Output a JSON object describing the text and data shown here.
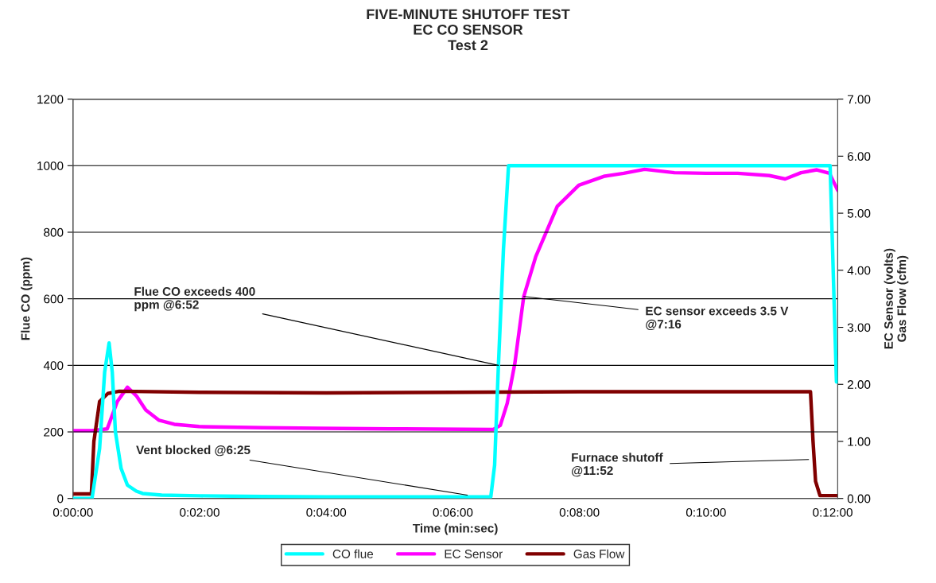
{
  "chart_data": {
    "type": "line",
    "title": "FIVE-MINUTE SHUTOFF TEST\nEC CO SENSOR\nTest 2",
    "xlabel": "Time (min:sec)",
    "ylabel": "Flue CO (ppm)",
    "y2label": "EC Sensor (volts)\nGas Flow (cfm)",
    "xlim": [
      0,
      12.08
    ],
    "xticks": [
      {
        "value": 0,
        "label": "0:00:00"
      },
      {
        "value": 2,
        "label": "0:02:00"
      },
      {
        "value": 4,
        "label": "0:04:00"
      },
      {
        "value": 6,
        "label": "0:06:00"
      },
      {
        "value": 8,
        "label": "0:08:00"
      },
      {
        "value": 10,
        "label": "0:10:00"
      },
      {
        "value": 12,
        "label": "0:12:00"
      }
    ],
    "ylim": [
      0,
      1200
    ],
    "yticks": [
      0,
      200,
      400,
      600,
      800,
      1000,
      1200
    ],
    "y2lim": [
      0,
      7
    ],
    "y2ticks": [
      {
        "value": 0,
        "label": "0.00"
      },
      {
        "value": 1,
        "label": "1.00"
      },
      {
        "value": 2,
        "label": "2.00"
      },
      {
        "value": 3,
        "label": "3.00"
      },
      {
        "value": 4,
        "label": "4.00"
      },
      {
        "value": 5,
        "label": "5.00"
      },
      {
        "value": 6,
        "label": "6.00"
      },
      {
        "value": 7,
        "label": "7.00"
      }
    ],
    "grid": "y",
    "legend": "bottom",
    "marker": "none",
    "line_style": "solid",
    "series": [
      {
        "name": "CO flue",
        "color": "#00ffff",
        "x": [
          0,
          0.3,
          0.42,
          0.5,
          0.57,
          0.62,
          0.67,
          0.76,
          0.86,
          1.0,
          1.1,
          1.4,
          2.0,
          3.0,
          4.0,
          5.0,
          6.0,
          6.6,
          6.66,
          6.72,
          6.8,
          6.88,
          8.0,
          9.0,
          10.0,
          11.0,
          11.96,
          12.06
        ],
        "values": [
          0,
          0,
          150,
          380,
          467,
          380,
          200,
          90,
          40,
          22,
          15,
          10,
          8,
          6,
          5,
          5,
          5,
          5,
          100,
          400,
          750,
          1000,
          1000,
          1000,
          1000,
          1000,
          1000,
          350
        ]
      },
      {
        "name": "EC Sensor",
        "color": "#ff00ff",
        "axis": "y2",
        "x": [
          0,
          0.3,
          0.54,
          0.7,
          0.86,
          1.0,
          1.15,
          1.36,
          1.6,
          1.99,
          3.0,
          3.87,
          5.0,
          6.64,
          6.75,
          6.86,
          6.98,
          7.12,
          7.31,
          7.65,
          7.99,
          8.4,
          8.7,
          9.03,
          9.5,
          10.0,
          10.5,
          11.0,
          11.25,
          11.5,
          11.75,
          11.95,
          12.08
        ],
        "values": [
          1.19,
          1.19,
          1.22,
          1.7,
          1.95,
          1.8,
          1.55,
          1.37,
          1.3,
          1.26,
          1.24,
          1.23,
          1.22,
          1.21,
          1.28,
          1.67,
          2.37,
          3.54,
          4.24,
          5.12,
          5.49,
          5.65,
          5.7,
          5.77,
          5.71,
          5.7,
          5.7,
          5.66,
          5.6,
          5.71,
          5.76,
          5.7,
          5.4
        ]
      },
      {
        "name": "Gas Flow",
        "color": "#800000",
        "axis": "y2",
        "x": [
          0,
          0.29,
          0.33,
          0.42,
          0.55,
          0.73,
          2.0,
          4.0,
          6.0,
          8.0,
          10.0,
          11.65,
          11.69,
          11.73,
          11.8,
          12.08
        ],
        "values": [
          0.08,
          0.08,
          1.0,
          1.7,
          1.84,
          1.88,
          1.86,
          1.85,
          1.86,
          1.87,
          1.87,
          1.87,
          1.0,
          0.3,
          0.05,
          0.05
        ]
      }
    ],
    "annotations": [
      {
        "text": "Flue CO exceeds 400\nppm @6:52",
        "x": 6.72,
        "y": 400
      },
      {
        "text": "EC sensor exceeds 3.5 V\n@7:16",
        "x": 7.12,
        "y": 607
      },
      {
        "text": "Vent blocked @6:25",
        "x": 6.23,
        "y": 10
      },
      {
        "text": "Furnace shutoff\n@11:52",
        "x": 11.62,
        "y": 117
      }
    ]
  }
}
